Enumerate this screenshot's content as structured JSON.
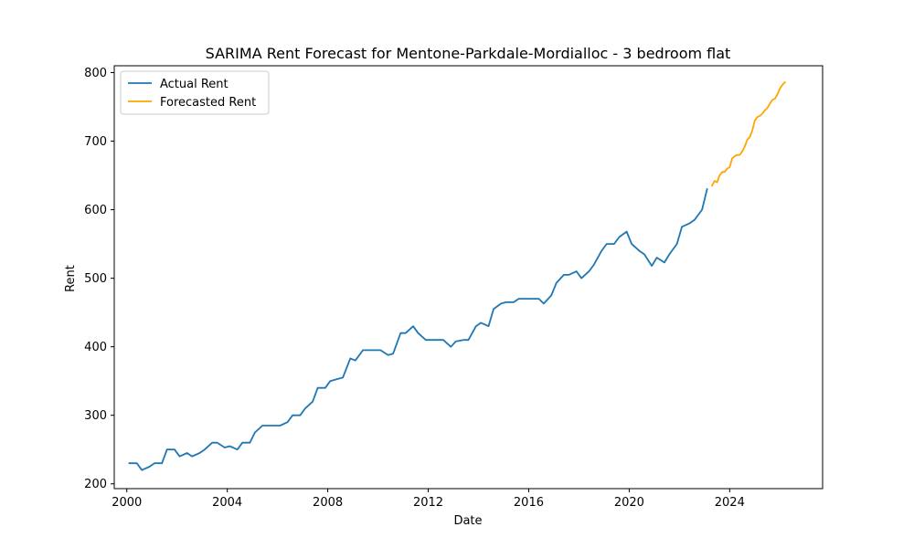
{
  "chart_data": {
    "type": "line",
    "title": "SARIMA Rent Forecast for Mentone-Parkdale-Mordialloc - 3 bedroom flat",
    "xlabel": "Date",
    "ylabel": "Rent",
    "xlim": [
      1999.5,
      2027.7
    ],
    "ylim": [
      193,
      810
    ],
    "x_ticks": [
      2000,
      2004,
      2008,
      2012,
      2016,
      2020,
      2024
    ],
    "y_ticks": [
      200,
      300,
      400,
      500,
      600,
      700,
      800
    ],
    "legend_position": "top-left",
    "grid": false,
    "series": [
      {
        "name": "Actual Rent",
        "color": "#1f77b4",
        "x": [
          2000.1,
          2000.4,
          2000.6,
          2000.9,
          2001.1,
          2001.4,
          2001.6,
          2001.9,
          2002.1,
          2002.4,
          2002.6,
          2002.9,
          2003.1,
          2003.4,
          2003.6,
          2003.9,
          2004.1,
          2004.4,
          2004.6,
          2004.9,
          2005.1,
          2005.4,
          2005.6,
          2005.9,
          2006.1,
          2006.4,
          2006.6,
          2006.9,
          2007.1,
          2007.4,
          2007.6,
          2007.9,
          2008.1,
          2008.4,
          2008.6,
          2008.9,
          2009.1,
          2009.4,
          2009.6,
          2009.9,
          2010.1,
          2010.4,
          2010.6,
          2010.9,
          2011.1,
          2011.4,
          2011.6,
          2011.9,
          2012.1,
          2012.4,
          2012.6,
          2012.9,
          2013.1,
          2013.4,
          2013.6,
          2013.9,
          2014.1,
          2014.4,
          2014.6,
          2014.9,
          2015.1,
          2015.4,
          2015.6,
          2015.9,
          2016.1,
          2016.4,
          2016.6,
          2016.9,
          2017.1,
          2017.4,
          2017.6,
          2017.9,
          2018.1,
          2018.4,
          2018.6,
          2018.9,
          2019.1,
          2019.4,
          2019.6,
          2019.9,
          2020.1,
          2020.4,
          2020.6,
          2020.9,
          2021.1,
          2021.4,
          2021.6,
          2021.9,
          2022.1,
          2022.4,
          2022.6,
          2022.9,
          2023.1
        ],
        "values": [
          230,
          230,
          220,
          225,
          230,
          230,
          250,
          250,
          240,
          245,
          240,
          245,
          250,
          260,
          260,
          253,
          255,
          250,
          260,
          260,
          275,
          285,
          285,
          285,
          285,
          290,
          300,
          300,
          310,
          320,
          340,
          340,
          350,
          353,
          355,
          383,
          380,
          395,
          395,
          395,
          395,
          388,
          390,
          420,
          420,
          430,
          420,
          410,
          410,
          410,
          410,
          400,
          408,
          410,
          410,
          430,
          435,
          430,
          455,
          463,
          465,
          465,
          470,
          470,
          470,
          470,
          463,
          475,
          493,
          505,
          505,
          510,
          500,
          510,
          520,
          540,
          550,
          550,
          560,
          568,
          550,
          540,
          535,
          518,
          530,
          523,
          535,
          550,
          575,
          580,
          585,
          600,
          630
        ]
      },
      {
        "name": "Forecasted Rent",
        "color": "#ffa500",
        "x": [
          2023.3,
          2023.4,
          2023.5,
          2023.6,
          2023.7,
          2023.8,
          2023.9,
          2024.0,
          2024.1,
          2024.2,
          2024.3,
          2024.4,
          2024.5,
          2024.6,
          2024.7,
          2024.8,
          2024.9,
          2025.0,
          2025.1,
          2025.2,
          2025.3,
          2025.4,
          2025.5,
          2025.6,
          2025.7,
          2025.8,
          2025.9,
          2026.0,
          2026.1,
          2026.2
        ],
        "values": [
          635,
          642,
          640,
          650,
          655,
          655,
          660,
          662,
          675,
          678,
          680,
          680,
          685,
          692,
          702,
          706,
          715,
          730,
          735,
          737,
          740,
          745,
          748,
          755,
          760,
          762,
          768,
          777,
          782,
          786
        ]
      }
    ]
  }
}
